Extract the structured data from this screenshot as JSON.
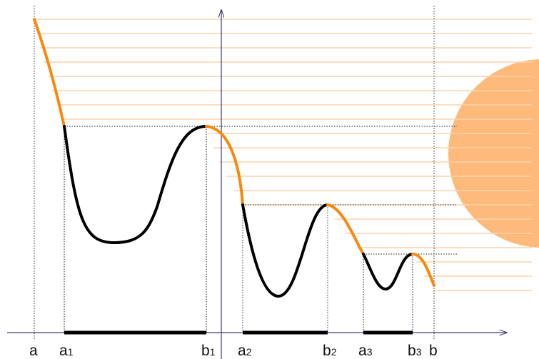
{
  "labels": [
    {
      "main": "a"
    },
    {
      "main": "a",
      "sub": "1"
    },
    {
      "main": "b",
      "sub": "1"
    },
    {
      "main": "a",
      "sub": "2"
    },
    {
      "main": "b",
      "sub": "2"
    },
    {
      "main": "a",
      "sub": "3"
    },
    {
      "main": "b",
      "sub": "3"
    },
    {
      "main": "b"
    }
  ]
}
